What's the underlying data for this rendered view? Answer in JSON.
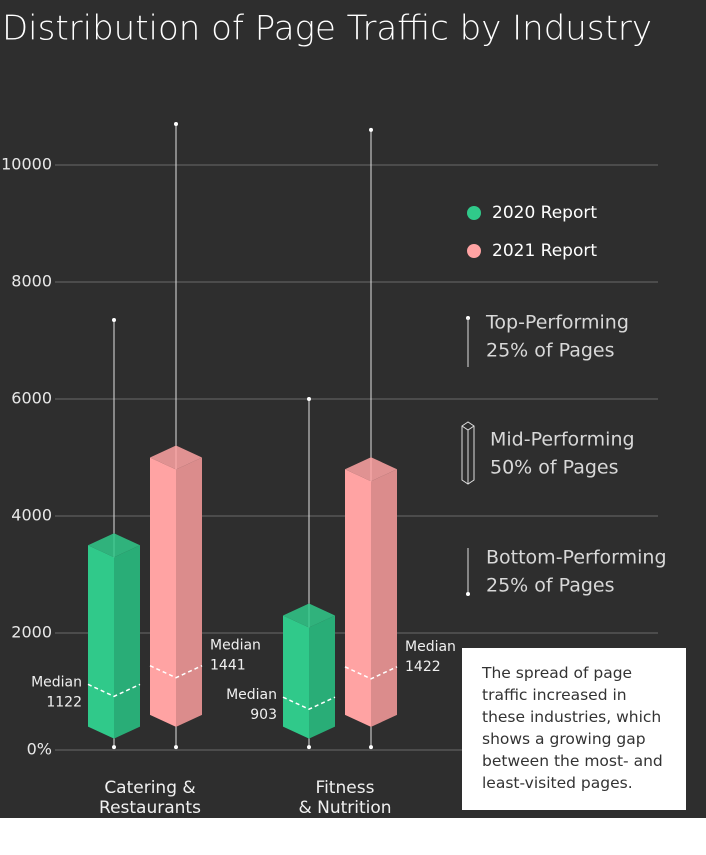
{
  "chart_data": {
    "type": "box",
    "title": "Distribution of Page Traffic by Industry",
    "categories": [
      [
        "Catering &",
        "Restaurants"
      ],
      [
        "Fitness",
        "& Nutrition"
      ]
    ],
    "median_label": "Median",
    "series": [
      {
        "name": "2020 Report",
        "color": "#30c98a",
        "min": [
          50,
          50
        ],
        "q1": [
          400,
          400
        ],
        "median": [
          1122,
          903
        ],
        "q3": [
          3500,
          2300
        ],
        "max": [
          7350,
          6000
        ]
      },
      {
        "name": "2021 Report",
        "color": "#ffa3a3",
        "min": [
          50,
          50
        ],
        "q1": [
          600,
          600
        ],
        "median": [
          1441,
          1422
        ],
        "q3": [
          5000,
          4800
        ],
        "max": [
          10700,
          10600
        ]
      }
    ],
    "ylim": [
      0,
      11000
    ],
    "yticks": [
      {
        "value": 0,
        "label": "0%"
      },
      2000,
      4000,
      6000,
      8000,
      10000
    ],
    "grid": true,
    "key": [
      [
        "Top-Performing",
        "25% of Pages"
      ],
      [
        "Mid-Performing",
        "50% of Pages"
      ],
      [
        "Bottom-Performing",
        "25% of Pages"
      ]
    ],
    "annotation": "The spread of page traffic increased in these industries, which shows a growing gap between the most- and least-visited pages."
  }
}
